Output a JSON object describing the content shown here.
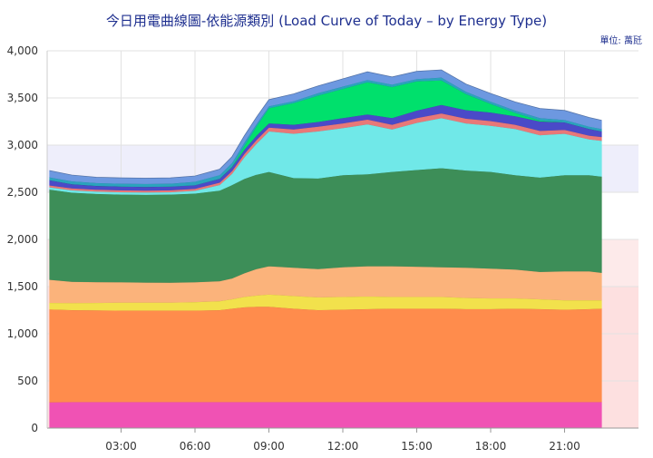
{
  "chart_data": {
    "type": "area",
    "stacked": true,
    "title": "今日用電曲線圖-依能源類別 (Load Curve of Today – by Energy Type)",
    "unit_label": "單位: 萬瓩",
    "xlabel": "",
    "ylabel": "",
    "x_ticks": [
      "03:00",
      "06:00",
      "09:00",
      "12:00",
      "15:00",
      "18:00",
      "21:00"
    ],
    "y_ticks": [
      "0",
      "500",
      "1,000",
      "1,500",
      "2,000",
      "2,500",
      "3,000",
      "3,500",
      "4,000"
    ],
    "ylim": [
      0,
      4000
    ],
    "xlim_hours": [
      0,
      24
    ],
    "grid": true,
    "legend": "none",
    "bands": [
      {
        "from": 2500,
        "to": 3000,
        "color": "#eeeefb"
      },
      {
        "from": 1500,
        "to": 2000,
        "color": "#fdeaea"
      },
      {
        "from": 0,
        "to": 1500,
        "color": "#fde0e0"
      }
    ],
    "x_hours": [
      0.1,
      1,
      2,
      3,
      4,
      5,
      6,
      7,
      7.5,
      8,
      8.5,
      9,
      10,
      11,
      12,
      13,
      14,
      15,
      16,
      17,
      18,
      19,
      20,
      21,
      22,
      22.5
    ],
    "series": [
      {
        "color": "#f052b4",
        "values": [
          275,
          278,
          278,
          278,
          278,
          278,
          278,
          278,
          278,
          278,
          278,
          278,
          278,
          278,
          278,
          278,
          278,
          278,
          278,
          278,
          278,
          278,
          278,
          278,
          278,
          278
        ]
      },
      {
        "color": "#ff8c4c",
        "values": [
          985,
          975,
          972,
          970,
          970,
          970,
          970,
          975,
          990,
          1005,
          1010,
          1010,
          990,
          975,
          980,
          985,
          990,
          990,
          990,
          985,
          985,
          990,
          985,
          980,
          985,
          990
        ]
      },
      {
        "color": "#f2e14c",
        "values": [
          70,
          75,
          80,
          85,
          85,
          85,
          90,
          95,
          100,
          110,
          120,
          130,
          135,
          135,
          135,
          135,
          125,
          125,
          125,
          120,
          115,
          110,
          105,
          100,
          95,
          90
        ]
      },
      {
        "color": "#fbb37b",
        "values": [
          245,
          225,
          220,
          215,
          212,
          210,
          210,
          212,
          220,
          250,
          280,
          300,
          300,
          300,
          315,
          320,
          325,
          320,
          315,
          320,
          315,
          305,
          290,
          305,
          305,
          290
        ]
      },
      {
        "color": "#3d8e58",
        "values": [
          955,
          945,
          935,
          930,
          930,
          935,
          940,
          960,
          990,
          1000,
          1000,
          1000,
          950,
          960,
          975,
          975,
          1000,
          1025,
          1050,
          1030,
          1025,
          1000,
          1000,
          1020,
          1020,
          1020
        ]
      },
      {
        "color": "#70e8e8",
        "values": [
          25,
          25,
          25,
          25,
          25,
          25,
          30,
          60,
          120,
          230,
          330,
          430,
          470,
          500,
          500,
          530,
          450,
          500,
          530,
          500,
          490,
          490,
          450,
          440,
          380,
          380
        ]
      },
      {
        "color": "#e87878",
        "values": [
          20,
          20,
          20,
          20,
          20,
          20,
          20,
          25,
          30,
          35,
          40,
          40,
          45,
          50,
          50,
          50,
          50,
          50,
          50,
          50,
          50,
          45,
          45,
          40,
          40,
          40
        ]
      },
      {
        "color": "#4a4ac8",
        "values": [
          55,
          45,
          40,
          40,
          40,
          40,
          40,
          40,
          40,
          45,
          45,
          45,
          50,
          50,
          55,
          55,
          70,
          80,
          90,
          90,
          90,
          90,
          100,
          80,
          70,
          60
        ]
      },
      {
        "color": "#00e06c",
        "values": [
          0,
          0,
          0,
          0,
          0,
          0,
          0,
          0,
          5,
          40,
          100,
          160,
          230,
          280,
          310,
          340,
          330,
          310,
          260,
          170,
          90,
          35,
          10,
          0,
          0,
          0
        ]
      },
      {
        "color": "#2ba3bd",
        "values": [
          30,
          30,
          30,
          30,
          30,
          30,
          35,
          40,
          40,
          35,
          25,
          20,
          20,
          25,
          25,
          25,
          25,
          25,
          30,
          25,
          25,
          25,
          25,
          25,
          25,
          25
        ]
      },
      {
        "color": "#6d98e0",
        "values": [
          70,
          65,
          60,
          60,
          60,
          60,
          60,
          60,
          65,
          70,
          70,
          70,
          75,
          75,
          80,
          85,
          80,
          80,
          80,
          80,
          85,
          90,
          100,
          100,
          95,
          90
        ]
      }
    ]
  }
}
